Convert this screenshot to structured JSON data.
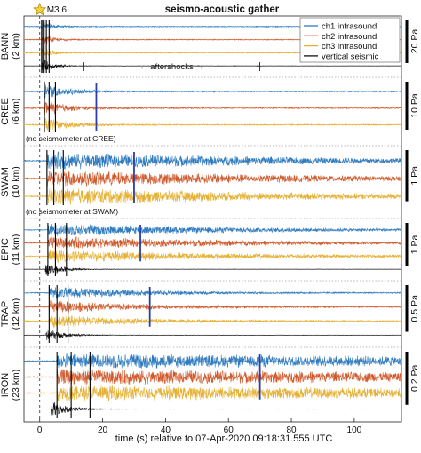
{
  "chart_data": {
    "type": "line",
    "title": "seismo-acoustic gather",
    "xlabel": "time (s) relative to 07-Apr-2020 09:18:31.555 UTC",
    "xlim": [
      -5,
      115
    ],
    "xticks": [
      0,
      20,
      40,
      60,
      80,
      100
    ],
    "event_label": "M3.6",
    "event_time": 0,
    "aftershocks_label": "← aftershocks →",
    "aftershocks_window": [
      14,
      70
    ],
    "legend": {
      "position": "top-right",
      "entries": [
        {
          "name": "ch1 infrasound",
          "color": "#2f7bbf"
        },
        {
          "name": "ch2 infrasound",
          "color": "#d05a2c"
        },
        {
          "name": "ch3 infrasound",
          "color": "#e5b033"
        },
        {
          "name": "vertical seismic",
          "color": "#111111"
        }
      ]
    },
    "stations": [
      {
        "code": "BANN",
        "distance": "(2 km)",
        "scale": "20 Pa",
        "has_seismic": true,
        "p_arrival": 0.6,
        "onset": 0.7,
        "decay": 3.5,
        "amp": 0.8,
        "picks": [
          0.6,
          1.0,
          1.4,
          2.1,
          3.0
        ],
        "aftershock_bursts": [
          16,
          20,
          26,
          35,
          44,
          50,
          57,
          62,
          69
        ]
      },
      {
        "code": "CREE",
        "distance": "(6 km)",
        "scale": "10 Pa",
        "has_seismic": false,
        "note": "(no seismometer at CREE)",
        "onset": 1.4,
        "decay": 8,
        "amp": 0.9,
        "picks": [
          1.5,
          3.0,
          5.0
        ],
        "blue_mark": 18
      },
      {
        "code": "SWAM",
        "distance": "(10 km)",
        "scale": "1 Pa",
        "has_seismic": false,
        "note": "(no seismometer at SWAM)",
        "onset": 2.3,
        "decay": 80,
        "amp": 0.95,
        "picks": [
          2.3,
          4.5,
          7.5
        ],
        "blue_mark": 30
      },
      {
        "code": "EPIC",
        "distance": "(11 km)",
        "scale": "1 Pa",
        "has_seismic": true,
        "p_arrival": 1.8,
        "onset": 2.6,
        "decay": 60,
        "amp": 0.95,
        "picks": [
          2.6,
          5.0,
          8.5
        ],
        "blue_mark": 32
      },
      {
        "code": "TRAP",
        "distance": "(12 km)",
        "scale": "0.5 Pa",
        "has_seismic": true,
        "p_arrival": 2.0,
        "onset": 3.0,
        "decay": 30,
        "amp": 0.9,
        "picks": [
          3.0,
          5.5,
          9.0
        ],
        "blue_mark": 35
      },
      {
        "code": "IRON",
        "distance": "(23 km)",
        "scale": "0.2 Pa",
        "has_seismic": true,
        "p_arrival": 3.6,
        "onset": 5.5,
        "decay": 200,
        "amp": 0.95,
        "picks": [
          5.5,
          10.0,
          16.0
        ],
        "blue_mark": 70
      }
    ]
  }
}
